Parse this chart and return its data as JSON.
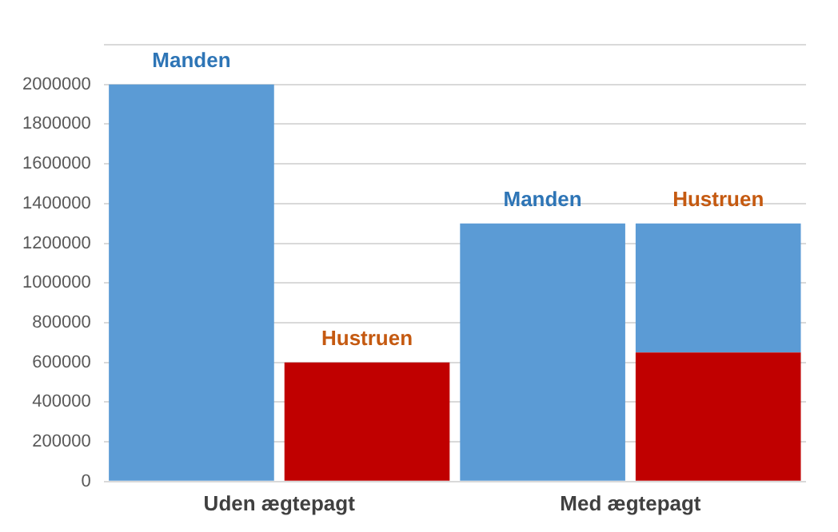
{
  "chart_data": {
    "type": "bar",
    "categories": [
      "Uden ægtepagt",
      null,
      "Med ægtepagt",
      null
    ],
    "series": [
      {
        "name": "Manden",
        "color": "#5b9bd5",
        "values": [
          2000000,
          null,
          1300000,
          null
        ]
      },
      {
        "name": "Hustruen",
        "color": "#c00000",
        "values": [
          null,
          600000,
          null,
          650000
        ]
      },
      {
        "color": "#5b9bd5",
        "values": [
          null,
          null,
          null,
          650000
        ]
      }
    ],
    "stacked": true,
    "ylim": [
      0,
      2200000
    ],
    "yticks": [
      0,
      200000,
      400000,
      600000,
      800000,
      1000000,
      1200000,
      1400000,
      1600000,
      1800000,
      2000000,
      {
        "value": 2200000,
        "label": null
      }
    ],
    "grid": "y",
    "legend": false
  }
}
